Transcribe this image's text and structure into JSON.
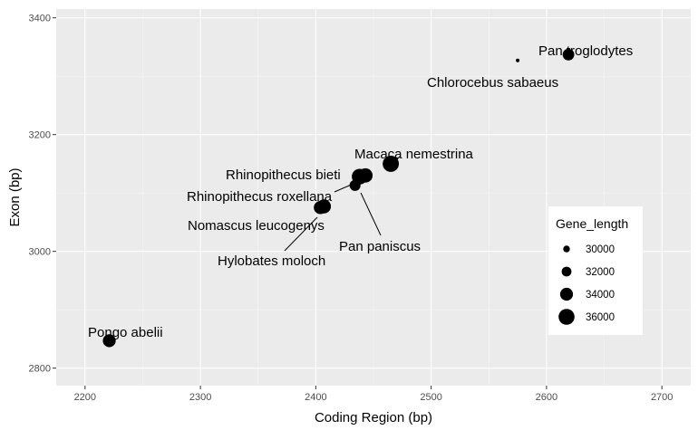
{
  "chart_data": {
    "type": "scatter",
    "xlabel": "Coding Region (bp)",
    "ylabel": "Exon (bp)",
    "xlim": [
      2175,
      2725
    ],
    "ylim": [
      2770,
      3415
    ],
    "x_ticks": [
      2200,
      2300,
      2400,
      2500,
      2600,
      2700
    ],
    "y_ticks": [
      2800,
      3000,
      3200,
      3400
    ],
    "grid": true,
    "point_color": "#000000",
    "panel_background": "#ebebeb",
    "points": [
      {
        "label": "Pan troglodytes",
        "x": 2619,
        "y": 3337,
        "gene_length": 33200
      },
      {
        "label": "Chlorocebus sabaeus",
        "x": 2575,
        "y": 3327,
        "gene_length": 28000
      },
      {
        "label": "Macaca nemestrina",
        "x": 2465,
        "y": 3150,
        "gene_length": 36200
      },
      {
        "label": "Rhinopithecus bieti",
        "x": 2443,
        "y": 3130,
        "gene_length": 35000
      },
      {
        "label": "Pan paniscus",
        "x": 2438,
        "y": 3128,
        "gene_length": 35800
      },
      {
        "label": "Rhinopithecus roxellana",
        "x": 2434,
        "y": 3113,
        "gene_length": 32800
      },
      {
        "label": "Nomascus leucogenys",
        "x": 2407,
        "y": 3077,
        "gene_length": 34800
      },
      {
        "label": "Hylobates moloch",
        "x": 2404,
        "y": 3075,
        "gene_length": 34200
      },
      {
        "label": "Pongo abelii",
        "x": 2221,
        "y": 2847,
        "gene_length": 34000
      }
    ],
    "legend": {
      "title": "Gene_length",
      "position": "right",
      "entries": [
        {
          "label": "30000",
          "value": 30000
        },
        {
          "label": "32000",
          "value": 32000
        },
        {
          "label": "34000",
          "value": 34000
        },
        {
          "label": "36000",
          "value": 36000
        }
      ]
    }
  }
}
